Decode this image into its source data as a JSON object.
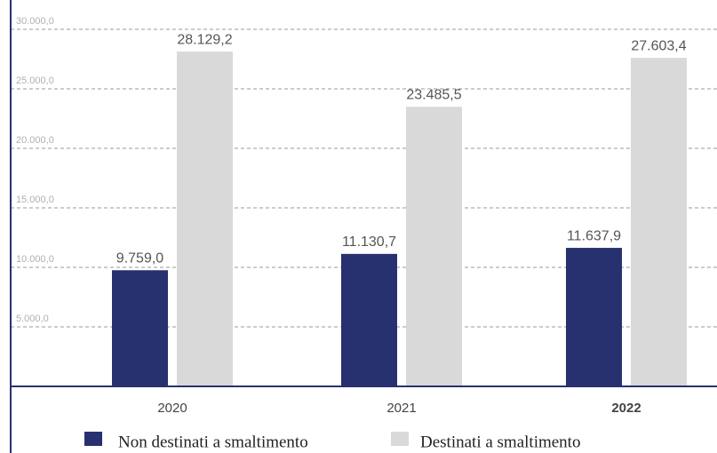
{
  "chart_data": {
    "type": "bar",
    "categories": [
      "2020",
      "2021",
      "2022"
    ],
    "highlight": "2022",
    "series": [
      {
        "name": "Non destinati a smaltimento",
        "color": "#28316f",
        "values": [
          9759.0,
          11130.7,
          11637.9
        ],
        "value_labels": [
          "9.759,0",
          "11.130,7",
          "11.637,9"
        ]
      },
      {
        "name": "Destinati a smaltimento",
        "color": "#d9d9d9",
        "values": [
          28129.2,
          23485.5,
          27603.4
        ],
        "value_labels": [
          "28.129,2",
          "23.485,5",
          "27.603,4"
        ]
      }
    ],
    "ylim": [
      0,
      30000
    ],
    "yticks": [
      {
        "value": 5000,
        "label": "5.000,0"
      },
      {
        "value": 10000,
        "label": "10.000,0"
      },
      {
        "value": 15000,
        "label": "15.000,0"
      },
      {
        "value": 20000,
        "label": "20.000,0"
      },
      {
        "value": 25000,
        "label": "25.000,0"
      },
      {
        "value": 30000,
        "label": "30.000,0"
      }
    ],
    "grid": true
  }
}
